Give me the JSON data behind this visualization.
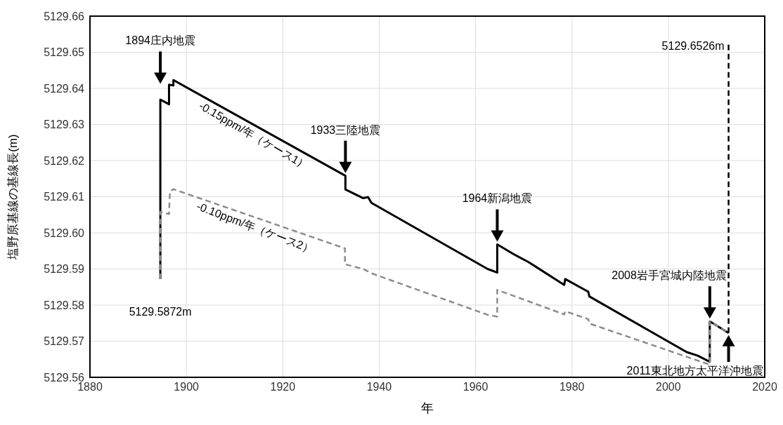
{
  "chart_data": {
    "type": "line",
    "xlabel": "年",
    "ylabel": "塩野原基線の基線長(m)",
    "xlim": [
      1880,
      2020
    ],
    "xticks": [
      1880,
      1900,
      1920,
      1940,
      1960,
      1980,
      2000,
      2020
    ],
    "ylim": [
      5129.56,
      5129.66
    ],
    "yticks": [
      5129.56,
      5129.57,
      5129.58,
      5129.59,
      {
        "value": 5129.6,
        "label": "5129.60"
      },
      5129.61,
      5129.62,
      5129.63,
      5129.64,
      5129.65,
      5129.66
    ],
    "grid": true,
    "series": [
      {
        "color": "#000000",
        "line_style": "solid",
        "x": [
          1894.6,
          1894.6,
          1896.4,
          1896.4,
          1897.3,
          1897.3,
          1933.0,
          1933.0,
          1936.7,
          1937.7,
          1938.4,
          1962.5,
          1964.5,
          1964.5,
          1968.3,
          1971.0,
          1978.4,
          1978.6,
          1983.4,
          1983.6,
          2003.8,
          2006.1,
          2008.6,
          2008.6,
          2012.5
        ],
        "values": [
          5129.5872,
          5129.6369,
          5129.6356,
          5129.641,
          5129.6408,
          5129.6423,
          5129.6158,
          5129.612,
          5129.6096,
          5129.6099,
          5129.6083,
          5129.59,
          5129.589,
          5129.5968,
          5129.5938,
          5129.5919,
          5129.5856,
          5129.5872,
          5129.5837,
          5129.5824,
          5129.567,
          5129.566,
          5129.5643,
          5129.5755,
          5129.5723
        ]
      },
      {
        "color": "#8c8c8c",
        "line_style": "dashed",
        "x": [
          1894.6,
          1894.6,
          1896.4,
          1896.6,
          1897.3,
          1932.9,
          1932.9,
          1936.7,
          1938.4,
          1962.5,
          1964.5,
          1964.5,
          1970.7,
          1978.4,
          1978.6,
          1983.4,
          1983.6,
          2008.6,
          2008.6,
          2012.5
        ],
        "values": [
          5129.5872,
          5129.6058,
          5129.6052,
          5129.6115,
          5129.6121,
          5129.5957,
          5129.5913,
          5129.59,
          5129.5888,
          5129.5773,
          5129.5768,
          5129.5842,
          5129.5812,
          5129.5774,
          5129.5783,
          5129.5761,
          5129.5749,
          5129.5635,
          5129.5755,
          5129.5723
        ]
      },
      {
        "color": "#000000",
        "line_style": "dashed",
        "x": [
          2012.5,
          2012.5
        ],
        "values": [
          5129.5723,
          5129.6526
        ]
      }
    ],
    "annotations": [
      "1894庄内地震",
      "1933三陸地震",
      "1964新潟地震",
      "2008岩手宮城内陸地震",
      {
        "text": "2011東北地方太平洋沖地震",
        "x": 2012.5,
        "y": 5129.5723
      },
      {
        "text": "-0.15ppm/年（ケース1）",
        "x": 1915,
        "y": 5129.6292
      },
      {
        "text": "-0.10ppm/年（ケース2）",
        "x": 1915,
        "y": 5129.6039
      },
      {
        "text": "5129.5872m",
        "x": 1894.6,
        "y": 5129.5872
      },
      {
        "text": "5129.6526m",
        "x": 2012.5,
        "y": 5129.6526
      }
    ]
  }
}
